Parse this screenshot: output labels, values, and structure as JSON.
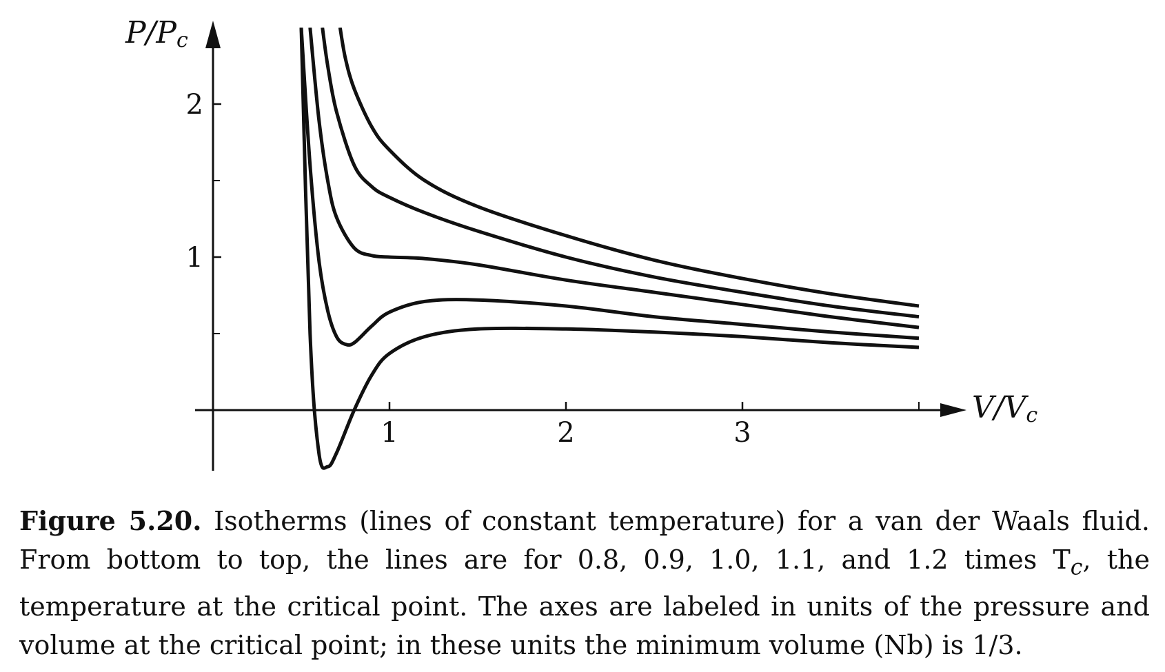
{
  "chart_data": {
    "type": "line",
    "xlabel": "V/V",
    "xlabel_sub": "c",
    "ylabel": "P/P",
    "ylabel_sub": "c",
    "xlim": [
      0,
      4
    ],
    "ylim": [
      -0.4,
      2.5
    ],
    "x_ticks": [
      1,
      2,
      3
    ],
    "y_ticks": [
      1,
      2
    ],
    "x_minor_ticks": [
      4
    ],
    "y_minor_ticks": [
      0.5,
      1.5
    ],
    "grid": false,
    "legend": "none",
    "line_color": "#111111",
    "series": [
      {
        "x": [
          0.5,
          0.55,
          0.6,
          0.65,
          0.7,
          0.8,
          0.9,
          1.0,
          1.2,
          1.5,
          2.0,
          2.5,
          3.0,
          3.5,
          4.0
        ],
        "y": [
          2.5,
          0.5,
          -0.28,
          -0.37,
          -0.28,
          0.0,
          0.23,
          0.37,
          0.48,
          0.53,
          0.53,
          0.51,
          0.48,
          0.44,
          0.41
        ]
      },
      {
        "x": [
          0.5,
          0.55,
          0.6,
          0.65,
          0.7,
          0.75,
          0.8,
          0.9,
          1.0,
          1.2,
          1.5,
          2.0,
          2.5,
          3.0,
          3.5,
          4.0
        ],
        "y": [
          2.5,
          1.6,
          0.98,
          0.65,
          0.48,
          0.43,
          0.44,
          0.55,
          0.64,
          0.71,
          0.72,
          0.68,
          0.61,
          0.56,
          0.51,
          0.47
        ]
      },
      {
        "x": [
          0.55,
          0.6,
          0.65,
          0.7,
          0.8,
          0.9,
          1.0,
          1.2,
          1.5,
          2.0,
          2.5,
          3.0,
          3.5,
          4.0
        ],
        "y": [
          2.5,
          1.9,
          1.5,
          1.26,
          1.06,
          1.01,
          1.0,
          0.99,
          0.95,
          0.85,
          0.77,
          0.69,
          0.61,
          0.54
        ]
      },
      {
        "x": [
          0.62,
          0.65,
          0.7,
          0.8,
          0.9,
          1.0,
          1.2,
          1.5,
          2.0,
          2.5,
          3.0,
          3.5,
          4.0
        ],
        "y": [
          2.5,
          2.25,
          1.95,
          1.6,
          1.46,
          1.39,
          1.29,
          1.17,
          1.0,
          0.87,
          0.77,
          0.68,
          0.61
        ]
      },
      {
        "x": [
          0.72,
          0.75,
          0.8,
          0.9,
          1.0,
          1.2,
          1.5,
          2.0,
          2.5,
          3.0,
          3.5,
          4.0
        ],
        "y": [
          2.5,
          2.3,
          2.1,
          1.85,
          1.7,
          1.5,
          1.33,
          1.14,
          0.98,
          0.86,
          0.76,
          0.68
        ]
      }
    ]
  },
  "caption": {
    "label": "Figure 5.20.",
    "text": "Isotherms (lines of constant temperature) for a van der Waals fluid. From bottom to top, the lines are for 0.8, 0.9, 1.0, 1.1, and 1.2 times T",
    "text_sub": "c",
    "text_end": ", the temperature at the critical point. The axes are labeled in units of the pressure and volume at the critical point; in these units the minimum volume (Nb) is 1/3."
  }
}
